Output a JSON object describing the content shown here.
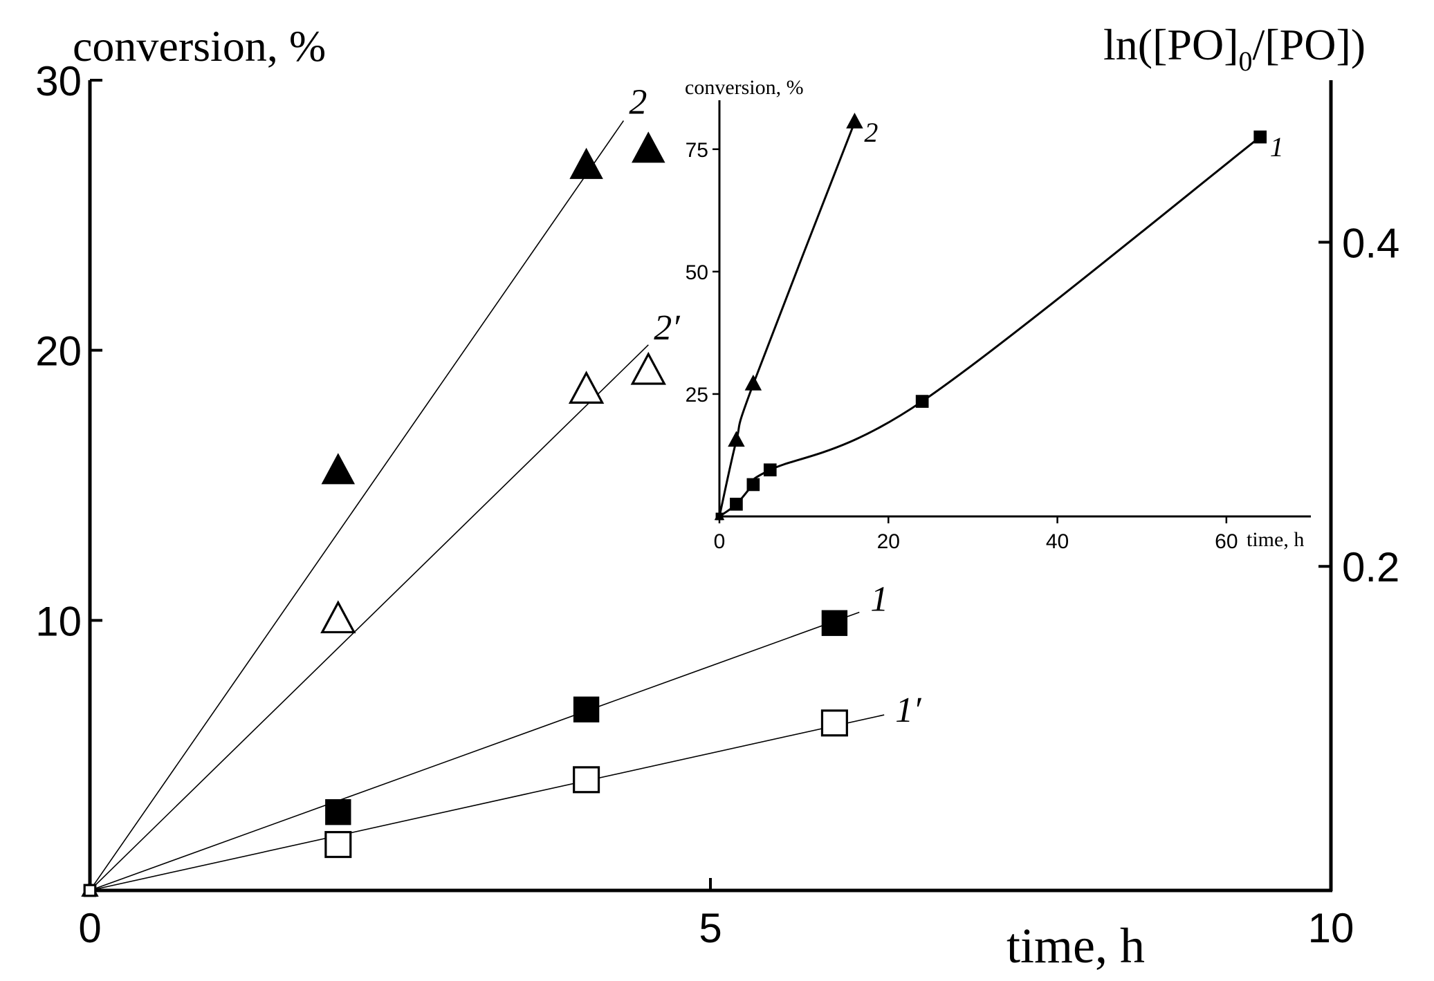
{
  "chart_data": [
    {
      "type": "scatter",
      "title": "",
      "xlabel": "time, h",
      "ylabel": "conversion, %",
      "y2label_base": "ln([PO]",
      "y2label_sub": "0",
      "y2label_tail": "/[PO])",
      "xlim": [
        0,
        10
      ],
      "ylim": [
        0,
        30
      ],
      "y2lim": [
        0,
        0.5
      ],
      "xticks": [
        0,
        5,
        10
      ],
      "xtick_labels": [
        "0",
        "5",
        "10"
      ],
      "yticks": [
        10,
        20,
        30
      ],
      "ytick_labels": [
        "10",
        "20",
        "30"
      ],
      "y2ticks": [
        0.2,
        0.4
      ],
      "y2tick_labels": [
        "0.2",
        "0.4"
      ],
      "grid": false,
      "series": [
        {
          "name": "2",
          "marker": "triangle-filled",
          "x": [
            0,
            2,
            4,
            4.5
          ],
          "y": [
            0,
            15.5,
            26.8,
            27.4
          ],
          "fit": [
            [
              0,
              0
            ],
            [
              4.3,
              28.5
            ]
          ]
        },
        {
          "name": "2′",
          "marker": "triangle-open",
          "x": [
            0,
            2,
            4,
            4.5
          ],
          "y": [
            0,
            10,
            18.5,
            19.2
          ],
          "fit": [
            [
              0,
              0
            ],
            [
              4.5,
              20.2
            ]
          ]
        },
        {
          "name": "1",
          "marker": "square-filled",
          "x": [
            0,
            2,
            4,
            6
          ],
          "y": [
            0,
            2.9,
            6.7,
            9.9
          ],
          "fit": [
            [
              0,
              0
            ],
            [
              6.2,
              10.3
            ]
          ]
        },
        {
          "name": "1′",
          "marker": "square-open",
          "x": [
            0,
            2,
            4,
            6
          ],
          "y": [
            0,
            1.7,
            4.1,
            6.2
          ],
          "fit": [
            [
              0,
              0
            ],
            [
              6.4,
              6.5
            ]
          ]
        }
      ]
    },
    {
      "type": "line",
      "title": "",
      "xlabel": "time, h",
      "ylabel": "conversion, %",
      "xlim": [
        0,
        70
      ],
      "ylim": [
        0,
        85
      ],
      "xticks": [
        0,
        20,
        40,
        60
      ],
      "xtick_labels": [
        "0",
        "20",
        "40",
        "60"
      ],
      "yticks": [
        25,
        50,
        75
      ],
      "ytick_labels": [
        "25",
        "50",
        "75"
      ],
      "grid": false,
      "series": [
        {
          "name": "2",
          "marker": "triangle-filled",
          "x": [
            0,
            2,
            4,
            16
          ],
          "y": [
            0,
            15.5,
            27,
            80.5
          ]
        },
        {
          "name": "1",
          "marker": "square-filled",
          "x": [
            0,
            2,
            4,
            6,
            24,
            64
          ],
          "y": [
            0,
            2.5,
            6.5,
            9.5,
            23.5,
            77.5
          ]
        }
      ]
    }
  ]
}
